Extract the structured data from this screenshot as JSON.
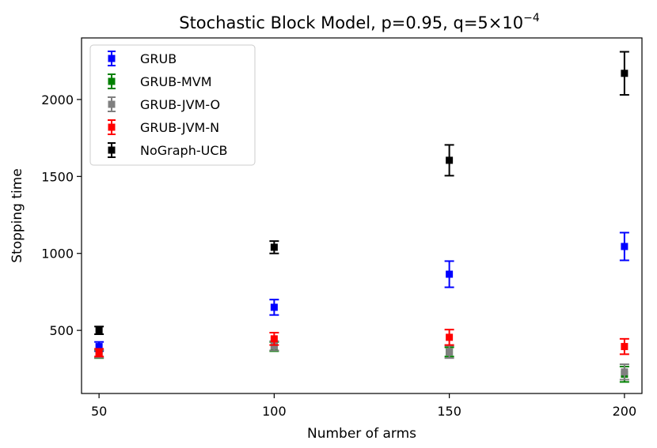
{
  "chart_data": {
    "type": "scatter",
    "title": "Stochastic Block Model, p=0.95, q=5×10",
    "title_exponent": "−4",
    "xlabel": "Number of arms",
    "ylabel": "Stopping time",
    "xlim": [
      45,
      205
    ],
    "ylim": [
      90,
      2400
    ],
    "x_ticks": [
      50,
      100,
      150,
      200
    ],
    "y_ticks": [
      500,
      1000,
      1500,
      2000
    ],
    "grid": false,
    "legend_position": "top-left",
    "x": [
      50,
      100,
      150,
      200
    ],
    "series": [
      {
        "name": "GRUB",
        "color": "#0000ff",
        "values": [
          395,
          650,
          865,
          1045
        ],
        "errors": [
          30,
          50,
          85,
          90
        ]
      },
      {
        "name": "GRUB-MVM",
        "color": "#008000",
        "values": [
          345,
          395,
          360,
          215
        ],
        "errors": [
          25,
          30,
          30,
          50
        ]
      },
      {
        "name": "GRUB-JVM-O",
        "color": "#808080",
        "values": [
          348,
          400,
          360,
          230
        ],
        "errors": [
          25,
          30,
          40,
          50
        ]
      },
      {
        "name": "GRUB-JVM-N",
        "color": "#ff0000",
        "values": [
          355,
          445,
          455,
          395
        ],
        "errors": [
          25,
          40,
          50,
          50
        ]
      },
      {
        "name": "NoGraph-UCB",
        "color": "#000000",
        "values": [
          500,
          1040,
          1605,
          2170
        ],
        "errors": [
          25,
          40,
          100,
          140
        ]
      }
    ]
  }
}
